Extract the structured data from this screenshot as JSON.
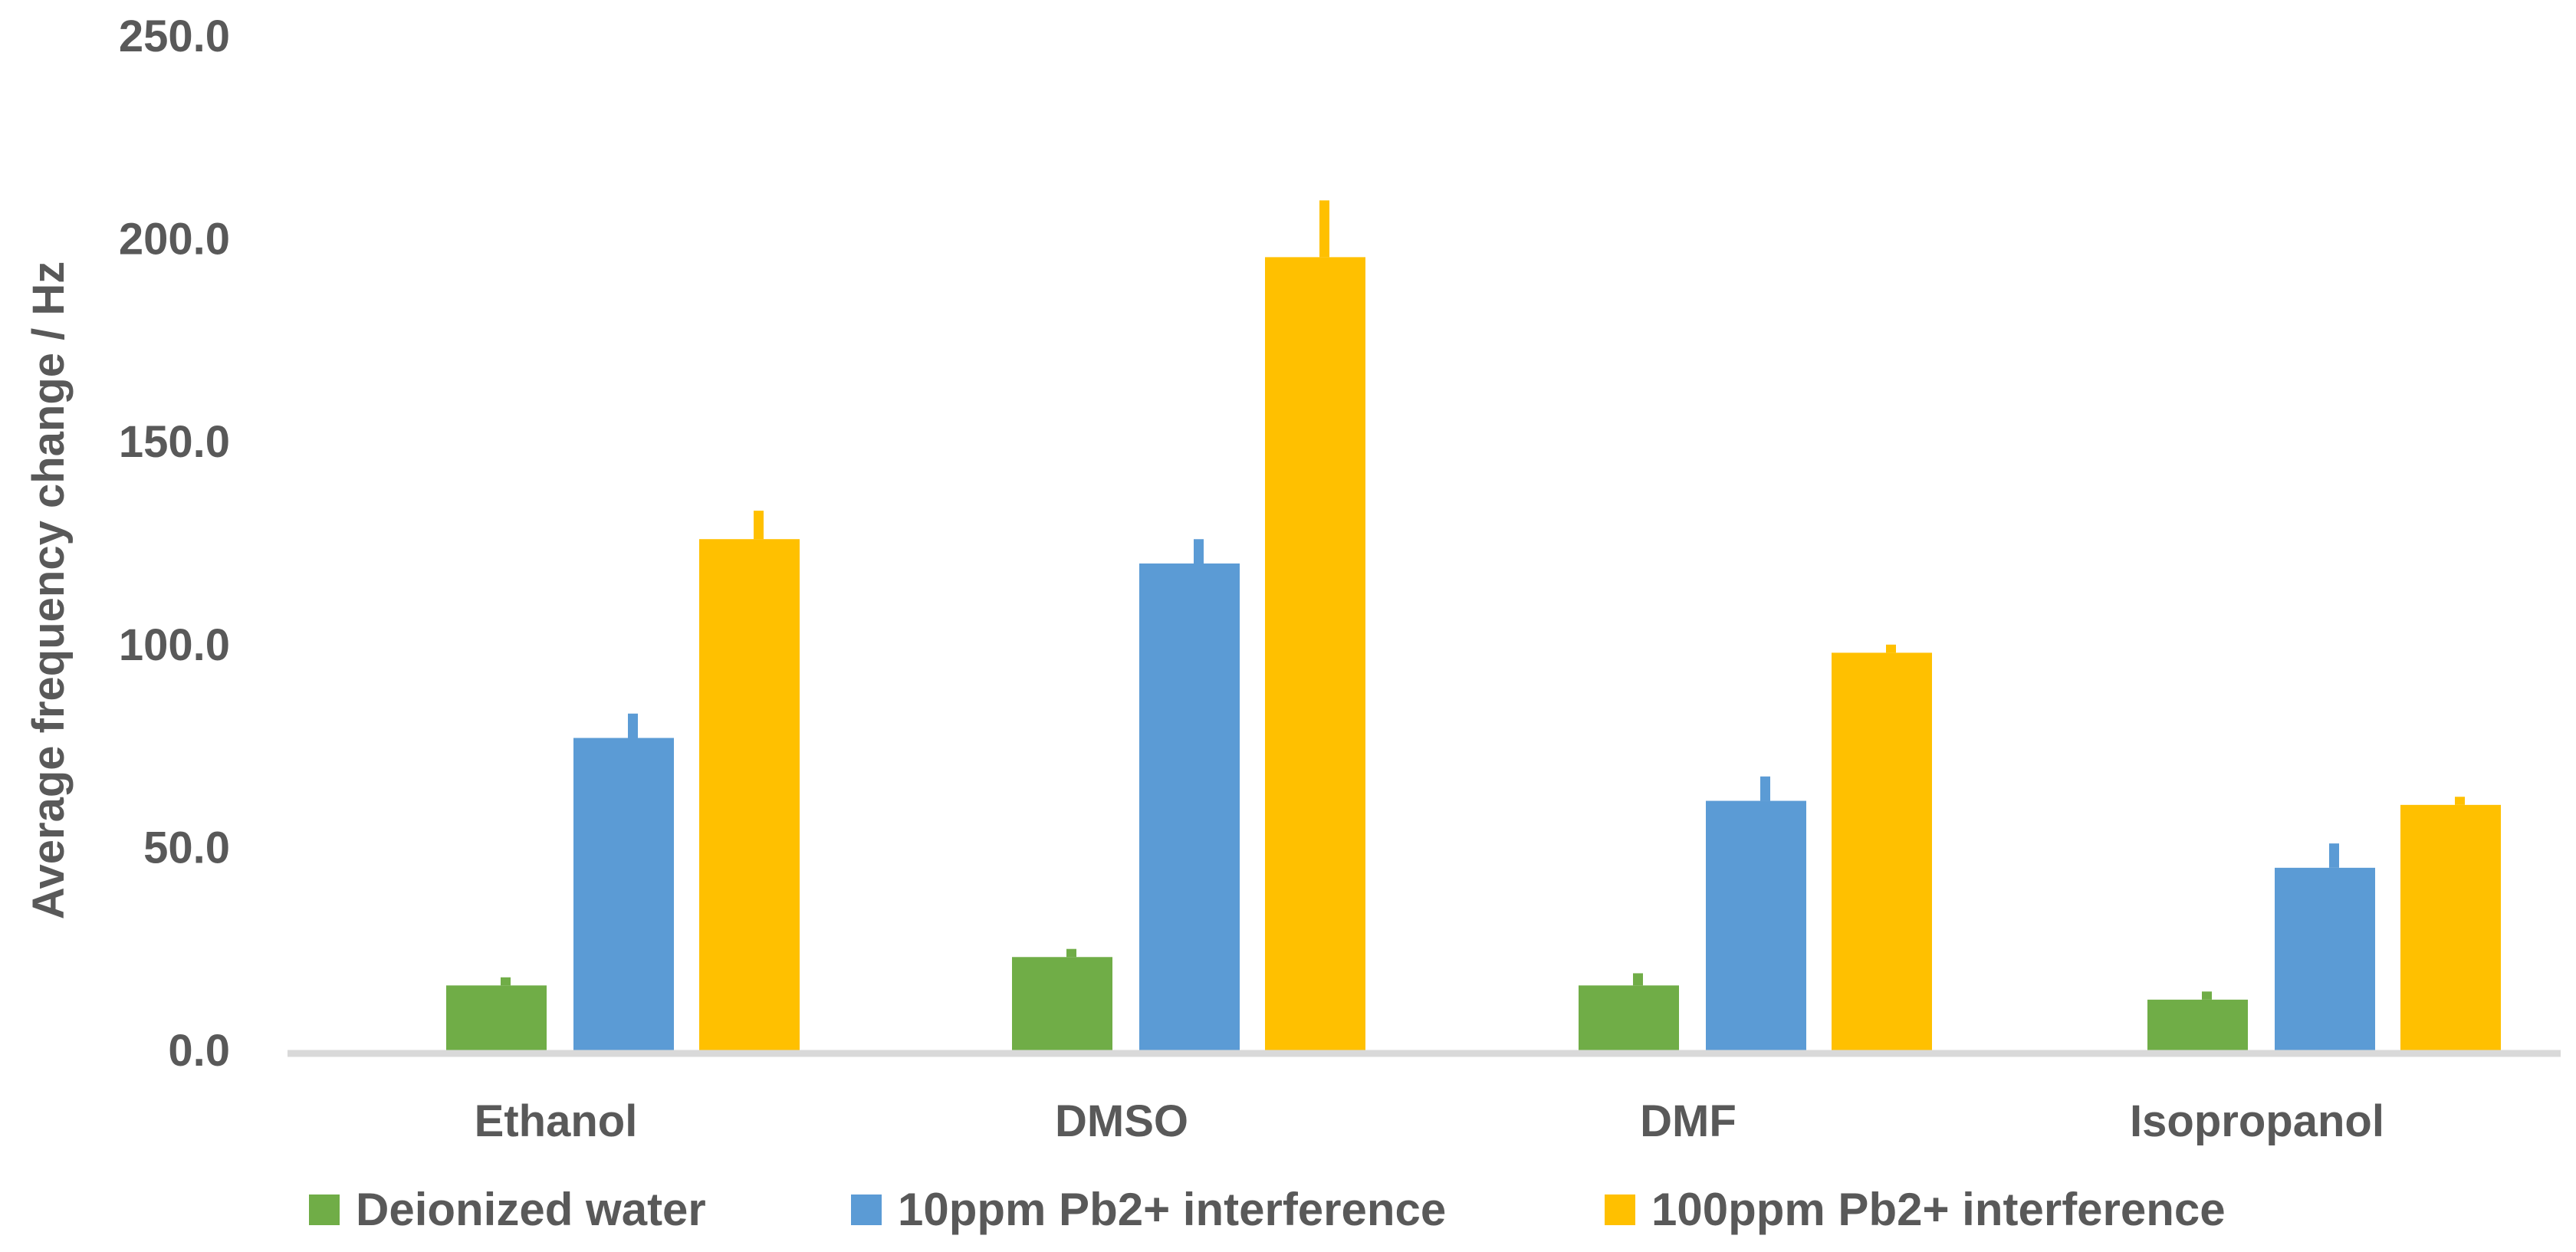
{
  "chart_data": {
    "type": "bar",
    "title": "",
    "xlabel": "",
    "ylabel": "Average frequency change / Hz",
    "ylim": [
      0,
      250
    ],
    "y_ticks": [
      "0.0",
      "50.0",
      "100.0",
      "150.0",
      "200.0",
      "250.0"
    ],
    "grid": false,
    "legend_position": "bottom",
    "categories": [
      "Ethanol",
      "DMSO",
      "DMF",
      "Isopropanol"
    ],
    "series": [
      {
        "name": "Deionized water",
        "color": "#70AD47",
        "values": [
          16,
          23,
          16,
          12.5
        ],
        "errors": [
          2,
          2,
          3,
          2
        ]
      },
      {
        "name": "10ppm Pb2+ interference",
        "color": "#5B9BD5",
        "values": [
          77,
          120,
          61.5,
          45
        ],
        "errors": [
          6,
          6,
          6,
          6
        ]
      },
      {
        "name": "100ppm Pb2+ interference",
        "color": "#FFC000",
        "values": [
          126,
          195.5,
          98,
          60.5
        ],
        "errors": [
          7,
          14,
          2,
          2
        ]
      }
    ]
  }
}
